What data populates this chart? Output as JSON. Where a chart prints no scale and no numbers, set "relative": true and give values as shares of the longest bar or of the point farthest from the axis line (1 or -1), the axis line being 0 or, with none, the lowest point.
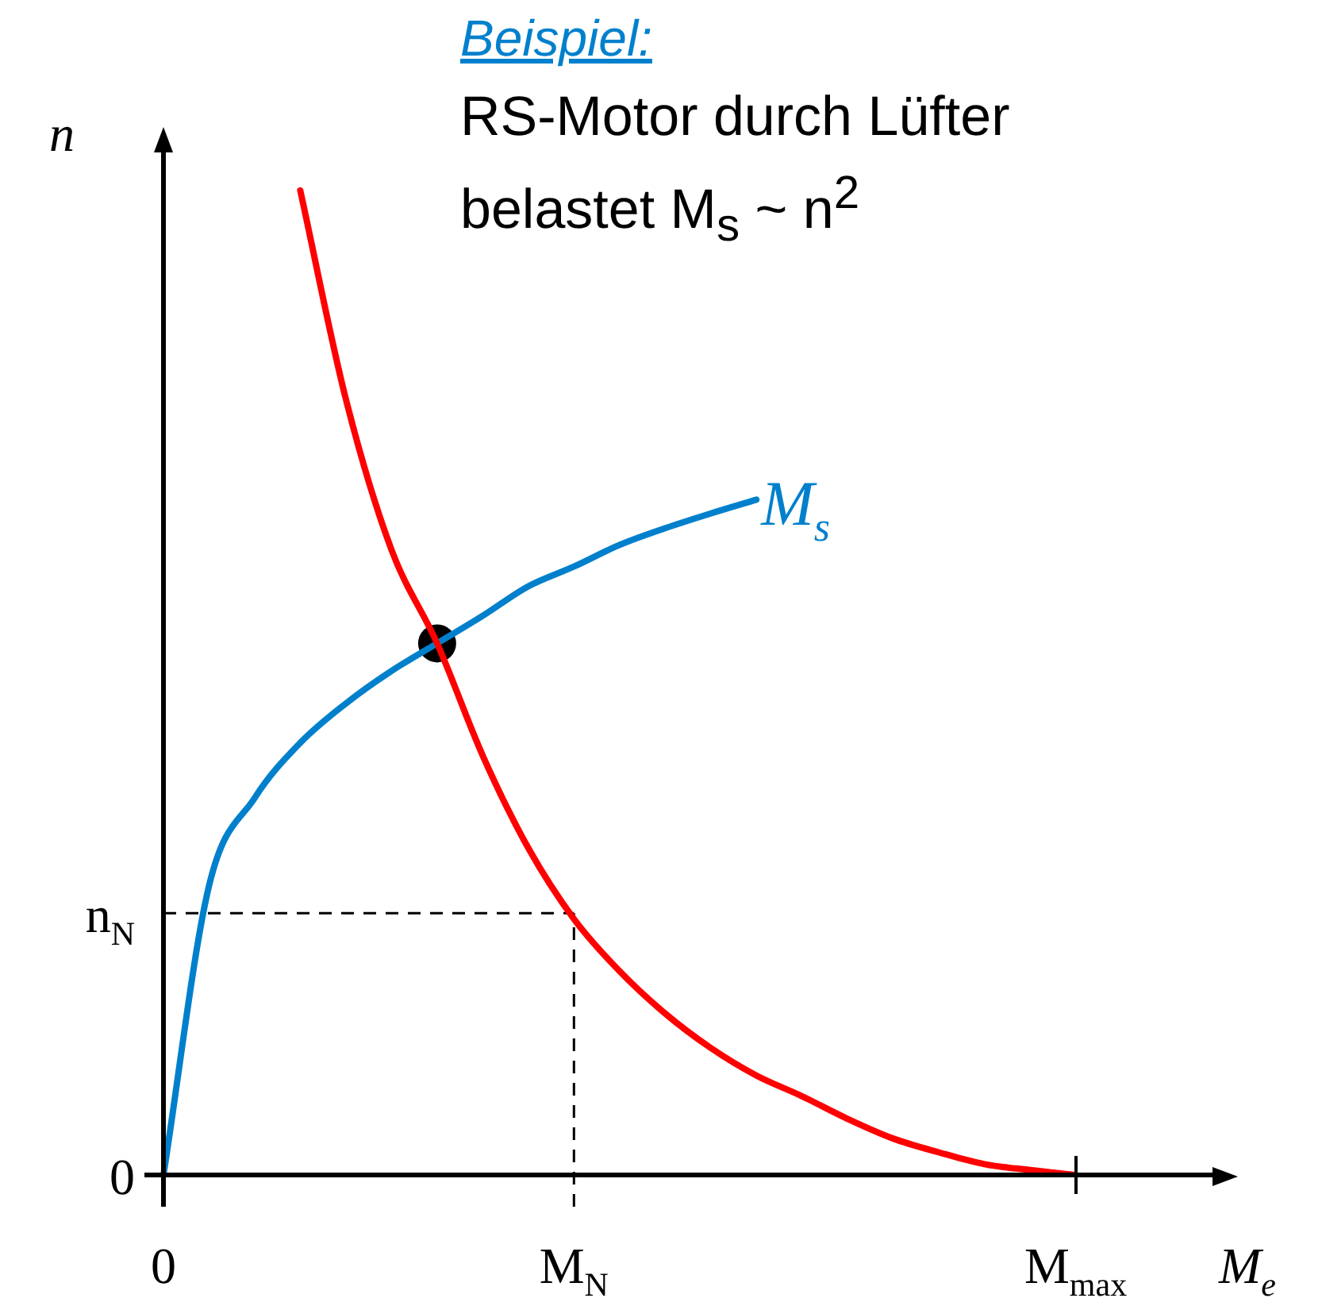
{
  "chart_data": {
    "type": "line",
    "title": "Beispiel:",
    "subtitle": "RS-Motor durch Lüfter belastet M$_{s}$ ~ n$^{2}$",
    "xlabel": "M$_{e}$",
    "ylabel": "n",
    "relative": true,
    "legend": false,
    "categories": [
      "0",
      null,
      null,
      null,
      null,
      null,
      null,
      null,
      null,
      "M$_{N}$",
      null,
      null,
      null,
      null,
      null,
      null,
      null,
      null,
      null,
      null,
      "M$_{max}$",
      null,
      null,
      null
    ],
    "annotations": [
      "0"
    ],
    "ref_lines": [
      {
        "axis": "y",
        "value": 0.266,
        "label": "n$_{N}$",
        "line_style": "dashed",
        "color": "#000000"
      },
      {
        "axis": "x",
        "value": "M$_{N}$",
        "line_style": "dashed",
        "color": "#000000"
      }
    ],
    "series": [
      {
        "color": "#ff0000",
        "marker": "none",
        "values": [
          null,
          null,
          null,
          1,
          0.788,
          0.635,
          0.54,
          0.426,
          0.332,
          0.26,
          0.207,
          0.164,
          0.129,
          0.101,
          0.08,
          0.057,
          0.037,
          0.023,
          0.011,
          0.005,
          0,
          null,
          null,
          null
        ]
      },
      {
        "name": "M$_{s}$",
        "color": "#0080cc",
        "marker": "none",
        "values": [
          0,
          0.294,
          0.383,
          0.439,
          0.479,
          0.512,
          0.54,
          0.568,
          0.598,
          0.618,
          0.64,
          0.657,
          0.672,
          0.686,
          null,
          null,
          null,
          null,
          null,
          null,
          null,
          null,
          null,
          null
        ]
      },
      {
        "type": "scatter",
        "color": "#000000",
        "marker": "circle",
        "values": [
          null,
          null,
          null,
          null,
          null,
          null,
          0.54,
          null,
          null,
          null,
          null,
          null,
          null,
          null,
          null,
          null,
          null,
          null,
          null,
          null,
          null,
          null,
          null,
          null
        ]
      }
    ]
  }
}
